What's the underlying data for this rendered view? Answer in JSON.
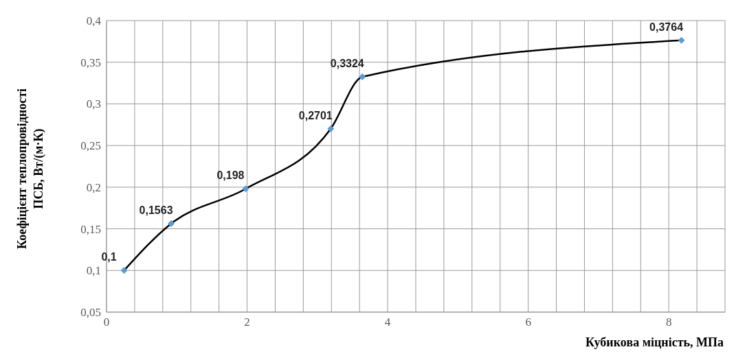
{
  "chart_data": {
    "type": "line",
    "xlabel": "Кубикова міцність, МПа",
    "ylabel": "Коефіцієнт теплопровідності\nПСБ, Вт/(м·К)",
    "series": [
      {
        "x": [
          0.25,
          0.92,
          1.98,
          3.19,
          3.64,
          8.18
        ],
        "values": [
          0.1,
          0.1563,
          0.198,
          0.2701,
          0.3324,
          0.3764
        ],
        "color": "#000000",
        "colors": [
          "#5b9bd5",
          "#5b9bd5",
          "#5b9bd5",
          "#5b9bd5",
          "#5b9bd5",
          "#5b9bd5"
        ],
        "value_labels": [
          "0,1",
          "0,1563",
          "0,198",
          "0,2701",
          "0,3324",
          "0,3764"
        ]
      }
    ],
    "xlim": [
      0,
      8.8
    ],
    "xticks": [
      0,
      {
        "value": 0.4,
        "label": null
      },
      {
        "value": 0.8,
        "label": null
      },
      {
        "value": 1.2,
        "label": null
      },
      {
        "value": 1.6,
        "label": null
      },
      2,
      {
        "value": 2.4,
        "label": null
      },
      {
        "value": 2.8,
        "label": null
      },
      {
        "value": 3.2,
        "label": null
      },
      {
        "value": 3.6,
        "label": null
      },
      4,
      {
        "value": 4.4,
        "label": null
      },
      {
        "value": 4.8,
        "label": null
      },
      {
        "value": 5.2,
        "label": null
      },
      {
        "value": 5.6,
        "label": null
      },
      6,
      {
        "value": 6.4,
        "label": null
      },
      {
        "value": 6.8,
        "label": null
      },
      {
        "value": 7.2,
        "label": null
      },
      {
        "value": 7.6,
        "label": null
      },
      8,
      {
        "value": 8.4,
        "label": null
      },
      {
        "value": 8.8,
        "label": null
      }
    ],
    "ylim": [
      0.05,
      0.4
    ],
    "yticks": [
      {
        "value": 0.05,
        "label": "0,05"
      },
      {
        "value": 0.1,
        "label": "0,1"
      },
      {
        "value": 0.15,
        "label": "0,15"
      },
      {
        "value": 0.2,
        "label": "0,2"
      },
      {
        "value": 0.25,
        "label": "0,25"
      },
      {
        "value": 0.3,
        "label": "0,3"
      },
      {
        "value": 0.35,
        "label": "0,35"
      },
      {
        "value": 0.4,
        "label": "0,4"
      }
    ],
    "grid": true,
    "marker": "diamond",
    "legend": false
  }
}
